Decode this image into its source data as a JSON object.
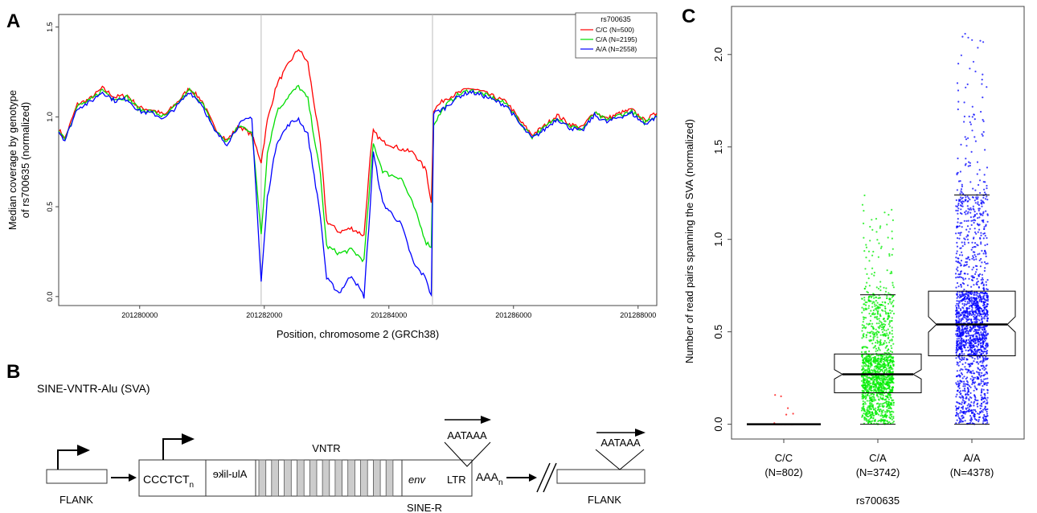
{
  "panels": {
    "a_letter": "A",
    "b_letter": "B",
    "c_letter": "C"
  },
  "chart_data": [
    {
      "type": "line",
      "panel": "A",
      "xlabel": "Position, chromosome 2 (GRCh38)",
      "ylabel_line1": "Median coverage by genotype",
      "ylabel_line2": "of rs700635 (normalized)",
      "xlim": [
        201278700,
        201288300
      ],
      "ylim": [
        -0.05,
        1.57
      ],
      "x_ticks": [
        201280000,
        201282000,
        201284000,
        201286000,
        201288000
      ],
      "x_tick_labels": [
        "201280000",
        "201282000",
        "201284000",
        "201286000",
        "201288000"
      ],
      "y_ticks": [
        0.0,
        0.5,
        1.0,
        1.5
      ],
      "y_tick_labels": [
        "0.0",
        "0.5",
        "1.0",
        "1.5"
      ],
      "vlines": [
        201281950,
        201284700
      ],
      "legend_title": "rs700635",
      "legend_position": "top-right",
      "series": [
        {
          "name": "C/C (N=500)",
          "color": "#ff0000",
          "points": [
            [
              201278700,
              0.93
            ],
            [
              201278800,
              0.88
            ],
            [
              201279000,
              1.07
            ],
            [
              201279200,
              1.1
            ],
            [
              201279400,
              1.16
            ],
            [
              201279600,
              1.11
            ],
            [
              201279800,
              1.12
            ],
            [
              201280000,
              1.05
            ],
            [
              201280200,
              1.04
            ],
            [
              201280400,
              1.01
            ],
            [
              201280600,
              1.08
            ],
            [
              201280800,
              1.16
            ],
            [
              201281000,
              1.09
            ],
            [
              201281200,
              0.94
            ],
            [
              201281400,
              0.87
            ],
            [
              201281600,
              0.95
            ],
            [
              201281800,
              0.9
            ],
            [
              201281950,
              0.75
            ],
            [
              201282050,
              0.98
            ],
            [
              201282200,
              1.18
            ],
            [
              201282400,
              1.3
            ],
            [
              201282550,
              1.38
            ],
            [
              201282700,
              1.3
            ],
            [
              201282900,
              0.85
            ],
            [
              201283000,
              0.42
            ],
            [
              201283200,
              0.36
            ],
            [
              201283400,
              0.38
            ],
            [
              201283600,
              0.34
            ],
            [
              201283700,
              0.77
            ],
            [
              201283750,
              0.92
            ],
            [
              201283900,
              0.86
            ],
            [
              201284000,
              0.85
            ],
            [
              201284200,
              0.82
            ],
            [
              201284400,
              0.8
            ],
            [
              201284600,
              0.7
            ],
            [
              201284680,
              0.52
            ],
            [
              201284720,
              1.04
            ],
            [
              201284900,
              1.1
            ],
            [
              201285100,
              1.13
            ],
            [
              201285300,
              1.16
            ],
            [
              201285500,
              1.14
            ],
            [
              201285700,
              1.11
            ],
            [
              201285900,
              1.08
            ],
            [
              201286100,
              0.98
            ],
            [
              201286300,
              0.9
            ],
            [
              201286500,
              0.95
            ],
            [
              201286700,
              1.01
            ],
            [
              201286900,
              0.96
            ],
            [
              201287100,
              0.94
            ],
            [
              201287300,
              1.03
            ],
            [
              201287500,
              0.99
            ],
            [
              201287700,
              1.02
            ],
            [
              201287900,
              1.04
            ],
            [
              201288100,
              0.98
            ],
            [
              201288300,
              1.02
            ]
          ]
        },
        {
          "name": "C/A (N=2195)",
          "color": "#00dd00",
          "points": [
            [
              201278700,
              0.93
            ],
            [
              201278800,
              0.88
            ],
            [
              201279000,
              1.06
            ],
            [
              201279200,
              1.09
            ],
            [
              201279400,
              1.15
            ],
            [
              201279600,
              1.1
            ],
            [
              201279800,
              1.11
            ],
            [
              201280000,
              1.04
            ],
            [
              201280200,
              1.03
            ],
            [
              201280400,
              1.0
            ],
            [
              201280600,
              1.07
            ],
            [
              201280800,
              1.15
            ],
            [
              201281000,
              1.08
            ],
            [
              201281200,
              0.93
            ],
            [
              201281400,
              0.86
            ],
            [
              201281600,
              0.95
            ],
            [
              201281800,
              0.92
            ],
            [
              201281950,
              0.35
            ],
            [
              201282050,
              0.8
            ],
            [
              201282200,
              1.03
            ],
            [
              201282400,
              1.12
            ],
            [
              201282550,
              1.17
            ],
            [
              201282700,
              1.1
            ],
            [
              201282900,
              0.68
            ],
            [
              201283000,
              0.28
            ],
            [
              201283200,
              0.24
            ],
            [
              201283400,
              0.26
            ],
            [
              201283600,
              0.2
            ],
            [
              201283700,
              0.65
            ],
            [
              201283750,
              0.85
            ],
            [
              201283900,
              0.7
            ],
            [
              201284000,
              0.68
            ],
            [
              201284200,
              0.66
            ],
            [
              201284400,
              0.5
            ],
            [
              201284600,
              0.3
            ],
            [
              201284680,
              0.28
            ],
            [
              201284720,
              0.96
            ],
            [
              201284900,
              1.06
            ],
            [
              201285100,
              1.12
            ],
            [
              201285300,
              1.15
            ],
            [
              201285500,
              1.13
            ],
            [
              201285700,
              1.1
            ],
            [
              201285900,
              1.07
            ],
            [
              201286100,
              0.97
            ],
            [
              201286300,
              0.89
            ],
            [
              201286500,
              0.94
            ],
            [
              201286700,
              1.0
            ],
            [
              201286900,
              0.95
            ],
            [
              201287100,
              0.93
            ],
            [
              201287300,
              1.02
            ],
            [
              201287500,
              0.98
            ],
            [
              201287700,
              1.01
            ],
            [
              201287900,
              1.03
            ],
            [
              201288100,
              0.97
            ],
            [
              201288300,
              1.01
            ]
          ]
        },
        {
          "name": "A/A (N=2558)",
          "color": "#0000ff",
          "points": [
            [
              201278700,
              0.92
            ],
            [
              201278800,
              0.87
            ],
            [
              201279000,
              1.05
            ],
            [
              201279200,
              1.08
            ],
            [
              201279400,
              1.14
            ],
            [
              201279600,
              1.09
            ],
            [
              201279800,
              1.1
            ],
            [
              201280000,
              1.03
            ],
            [
              201280200,
              1.02
            ],
            [
              201280400,
              0.99
            ],
            [
              201280600,
              1.06
            ],
            [
              201280800,
              1.14
            ],
            [
              201281000,
              1.07
            ],
            [
              201281200,
              0.92
            ],
            [
              201281400,
              0.85
            ],
            [
              201281600,
              0.96
            ],
            [
              201281800,
              1.0
            ],
            [
              201281950,
              0.08
            ],
            [
              201282050,
              0.55
            ],
            [
              201282200,
              0.86
            ],
            [
              201282400,
              0.96
            ],
            [
              201282550,
              0.99
            ],
            [
              201282700,
              0.9
            ],
            [
              201282900,
              0.45
            ],
            [
              201283000,
              0.1
            ],
            [
              201283200,
              0.02
            ],
            [
              201283400,
              0.12
            ],
            [
              201283600,
              0.0
            ],
            [
              201283700,
              0.5
            ],
            [
              201283750,
              0.8
            ],
            [
              201283900,
              0.52
            ],
            [
              201284000,
              0.48
            ],
            [
              201284200,
              0.4
            ],
            [
              201284400,
              0.18
            ],
            [
              201284600,
              0.1
            ],
            [
              201284680,
              0.0
            ],
            [
              201284720,
              1.02
            ],
            [
              201284900,
              1.05
            ],
            [
              201285100,
              1.11
            ],
            [
              201285300,
              1.14
            ],
            [
              201285500,
              1.12
            ],
            [
              201285700,
              1.09
            ],
            [
              201285900,
              1.06
            ],
            [
              201286100,
              0.96
            ],
            [
              201286300,
              0.88
            ],
            [
              201286500,
              0.93
            ],
            [
              201286700,
              0.99
            ],
            [
              201286900,
              0.94
            ],
            [
              201287100,
              0.92
            ],
            [
              201287300,
              1.01
            ],
            [
              201287500,
              0.97
            ],
            [
              201287700,
              1.0
            ],
            [
              201287900,
              1.02
            ],
            [
              201288100,
              0.96
            ],
            [
              201288300,
              1.0
            ]
          ]
        }
      ]
    },
    {
      "type": "box",
      "panel": "C",
      "ylabel": "Number of read pairs spanning the SVA (normalized)",
      "xlabel": "rs700635",
      "ylim": [
        -0.08,
        2.26
      ],
      "y_ticks": [
        0.0,
        0.5,
        1.0,
        1.5,
        2.0
      ],
      "y_tick_labels": [
        "0.0",
        "0.5",
        "1.0",
        "1.5",
        "2.0"
      ],
      "categories": [
        "C/C",
        "C/A",
        "A/A"
      ],
      "category_counts": [
        "(N=802)",
        "(N=3742)",
        "(N=4378)"
      ],
      "groups": [
        {
          "name": "C/C",
          "color": "#ff0000",
          "whisker_low": 0.0,
          "q1": 0.0,
          "median": 0.0,
          "q3": 0.0,
          "whisker_high": 0.0,
          "outlier_max": 0.17
        },
        {
          "name": "C/A",
          "color": "#00ee00",
          "whisker_low": 0.0,
          "q1": 0.17,
          "median": 0.27,
          "q3": 0.38,
          "whisker_high": 0.7,
          "outlier_max": 1.26
        },
        {
          "name": "A/A",
          "color": "#0000ff",
          "whisker_low": 0.0,
          "q1": 0.37,
          "median": 0.54,
          "q3": 0.72,
          "whisker_high": 1.24,
          "outlier_max": 2.18
        }
      ]
    }
  ],
  "diagram_b": {
    "title": "SINE-VNTR-Alu (SVA)",
    "flank_left": "FLANK",
    "flank_right": "FLANK",
    "ccctct": "CCCTCT",
    "ccctct_sub": "n",
    "alu_like": "Alu-like",
    "vntr": "VNTR",
    "env": "env",
    "ltr": "LTR",
    "aaa": "AAA",
    "aaa_sub": "n",
    "sine_r": "SINE-R",
    "aataaa_1": "AATAAA",
    "aataaa_2": "AATAAA",
    "vntr_stripes": 11
  }
}
